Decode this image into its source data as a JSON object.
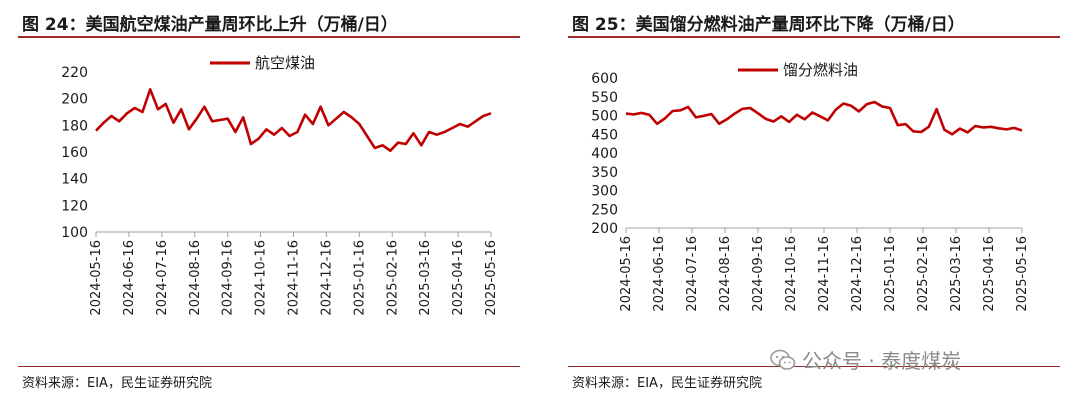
{
  "chart_data": [
    {
      "type": "line",
      "title": "图 24：美国航空煤油产量周环比上升（万桶/日）",
      "source": "资料来源：EIA，民生证券研究院",
      "legend": "top-center",
      "ylim": [
        100,
        220
      ],
      "yticks": [
        100,
        120,
        140,
        160,
        180,
        200,
        220
      ],
      "xticks": [
        "2024-05-16",
        "2024-06-16",
        "2024-07-16",
        "2024-08-16",
        "2024-09-16",
        "2024-10-16",
        "2024-11-16",
        "2024-12-16",
        "2025-01-16",
        "2025-02-16",
        "2025-03-16",
        "2025-04-16",
        "2025-05-16"
      ],
      "color": "#c00000",
      "series": [
        {
          "name": "航空煤油",
          "values": [
            176,
            182,
            187,
            183,
            189,
            193,
            190,
            207,
            192,
            196,
            182,
            192,
            177,
            185,
            194,
            183,
            184,
            185,
            175,
            186,
            166,
            170,
            177,
            173,
            178,
            172,
            175,
            188,
            181,
            194,
            180,
            185,
            190,
            186,
            181,
            172,
            163,
            165,
            161,
            167,
            166,
            174,
            165,
            175,
            173,
            175,
            178,
            181,
            179,
            183,
            187,
            189
          ]
        }
      ]
    },
    {
      "type": "line",
      "title": "图 25：美国馏分燃料油产量周环比下降（万桶/日）",
      "source": "资料来源：EIA，民生证券研究院",
      "legend": "top-center",
      "ylim": [
        200,
        600
      ],
      "yticks": [
        200,
        250,
        300,
        350,
        400,
        450,
        500,
        550,
        600
      ],
      "xticks": [
        "2024-05-16",
        "2024-06-16",
        "2024-07-16",
        "2024-08-16",
        "2024-09-16",
        "2024-10-16",
        "2024-11-16",
        "2024-12-16",
        "2025-01-16",
        "2025-02-16",
        "2025-03-16",
        "2025-04-16",
        "2025-05-16"
      ],
      "color": "#c00000",
      "series": [
        {
          "name": "馏分燃料油",
          "values": [
            505,
            503,
            507,
            502,
            478,
            492,
            512,
            514,
            523,
            495,
            499,
            504,
            478,
            490,
            505,
            518,
            520,
            506,
            491,
            484,
            498,
            483,
            502,
            490,
            508,
            498,
            487,
            515,
            532,
            526,
            511,
            530,
            536,
            524,
            520,
            474,
            477,
            458,
            456,
            470,
            517,
            462,
            450,
            465,
            455,
            472,
            468,
            470,
            466,
            463,
            467,
            460
          ]
        }
      ]
    }
  ],
  "watermark": {
    "icon": "wechat-icon",
    "text": "公众号 · 泰度煤炭"
  }
}
